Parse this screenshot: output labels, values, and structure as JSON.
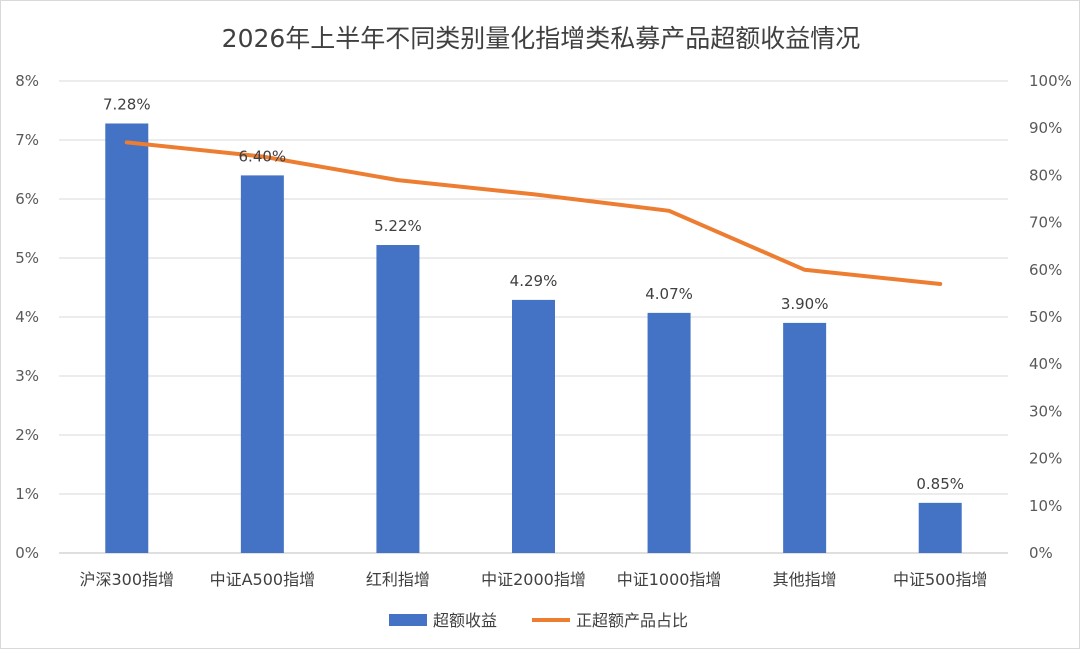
{
  "chart_data": {
    "type": "bar",
    "title": "2026年上半年不同类别量化指增类私募产品超额收益情况",
    "categories": [
      "沪深300指增",
      "中证A500指增",
      "红利指增",
      "中证2000指增",
      "中证1000指增",
      "其他指增",
      "中证500指增"
    ],
    "series": [
      {
        "name": "超额收益",
        "type": "bar",
        "axis": "left",
        "color": "#4472C4",
        "values": [
          7.28,
          6.4,
          5.22,
          4.29,
          4.07,
          3.9,
          0.85
        ],
        "labels": [
          "7.28%",
          "6.40%",
          "5.22%",
          "4.29%",
          "4.07%",
          "3.90%",
          "0.85%"
        ]
      },
      {
        "name": "正超额产品占比",
        "type": "line",
        "axis": "right",
        "color": "#ED7D31",
        "values": [
          87,
          84,
          79,
          76,
          72.5,
          60,
          57
        ]
      }
    ],
    "ylim_left": [
      0,
      8
    ],
    "yticks_left": [
      "0%",
      "1%",
      "2%",
      "3%",
      "4%",
      "5%",
      "6%",
      "7%",
      "8%"
    ],
    "ylim_right": [
      0,
      100
    ],
    "yticks_right": [
      "0%",
      "10%",
      "20%",
      "30%",
      "40%",
      "50%",
      "60%",
      "70%",
      "80%",
      "90%",
      "100%"
    ],
    "grid": true,
    "legend_position": "bottom"
  }
}
